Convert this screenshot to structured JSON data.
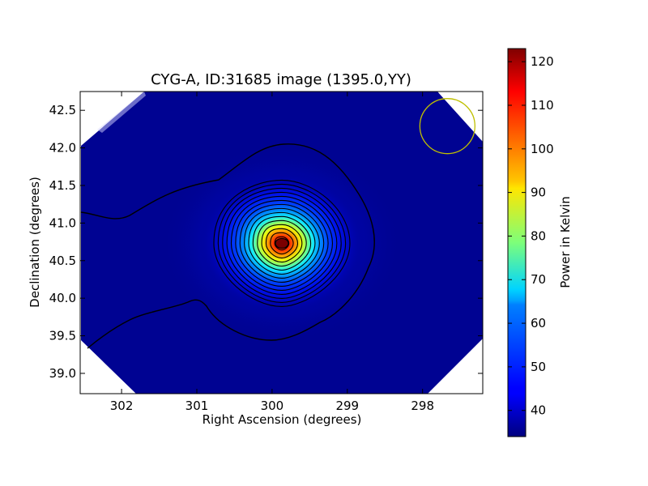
{
  "chart_data": {
    "type": "heatmap",
    "title": "CYG-A, ID:31685 image (1395.0,YY)",
    "xlabel": "Right Ascension (degrees)",
    "ylabel": "Declination (degrees)",
    "xlim": [
      302.55,
      297.2
    ],
    "ylim": [
      38.73,
      42.75
    ],
    "x_ticks": [
      302,
      301,
      300,
      299,
      298
    ],
    "y_ticks": [
      39.0,
      39.5,
      40.0,
      40.5,
      41.0,
      41.5,
      42.0,
      42.5
    ],
    "x_tick_labels": [
      "302",
      "301",
      "300",
      "299",
      "298"
    ],
    "y_tick_labels": [
      "39.0",
      "39.5",
      "40.0",
      "40.5",
      "41.0",
      "41.5",
      "42.0",
      "42.5"
    ],
    "colormap": "jet",
    "colorbar": {
      "label": "Power in Kelvin",
      "range": [
        34,
        123
      ],
      "ticks": [
        40,
        50,
        60,
        70,
        80,
        90,
        100,
        110,
        120
      ],
      "tick_labels": [
        "40",
        "50",
        "60",
        "70",
        "80",
        "90",
        "100",
        "110",
        "120"
      ]
    },
    "source": {
      "name": "CYG-A",
      "ra": 299.87,
      "dec": 40.73,
      "peak_kelvin": 123,
      "background_kelvin": 34
    },
    "beam": {
      "ra": 297.67,
      "dec": 42.29,
      "color": "#bfbf00"
    },
    "grid": false
  }
}
